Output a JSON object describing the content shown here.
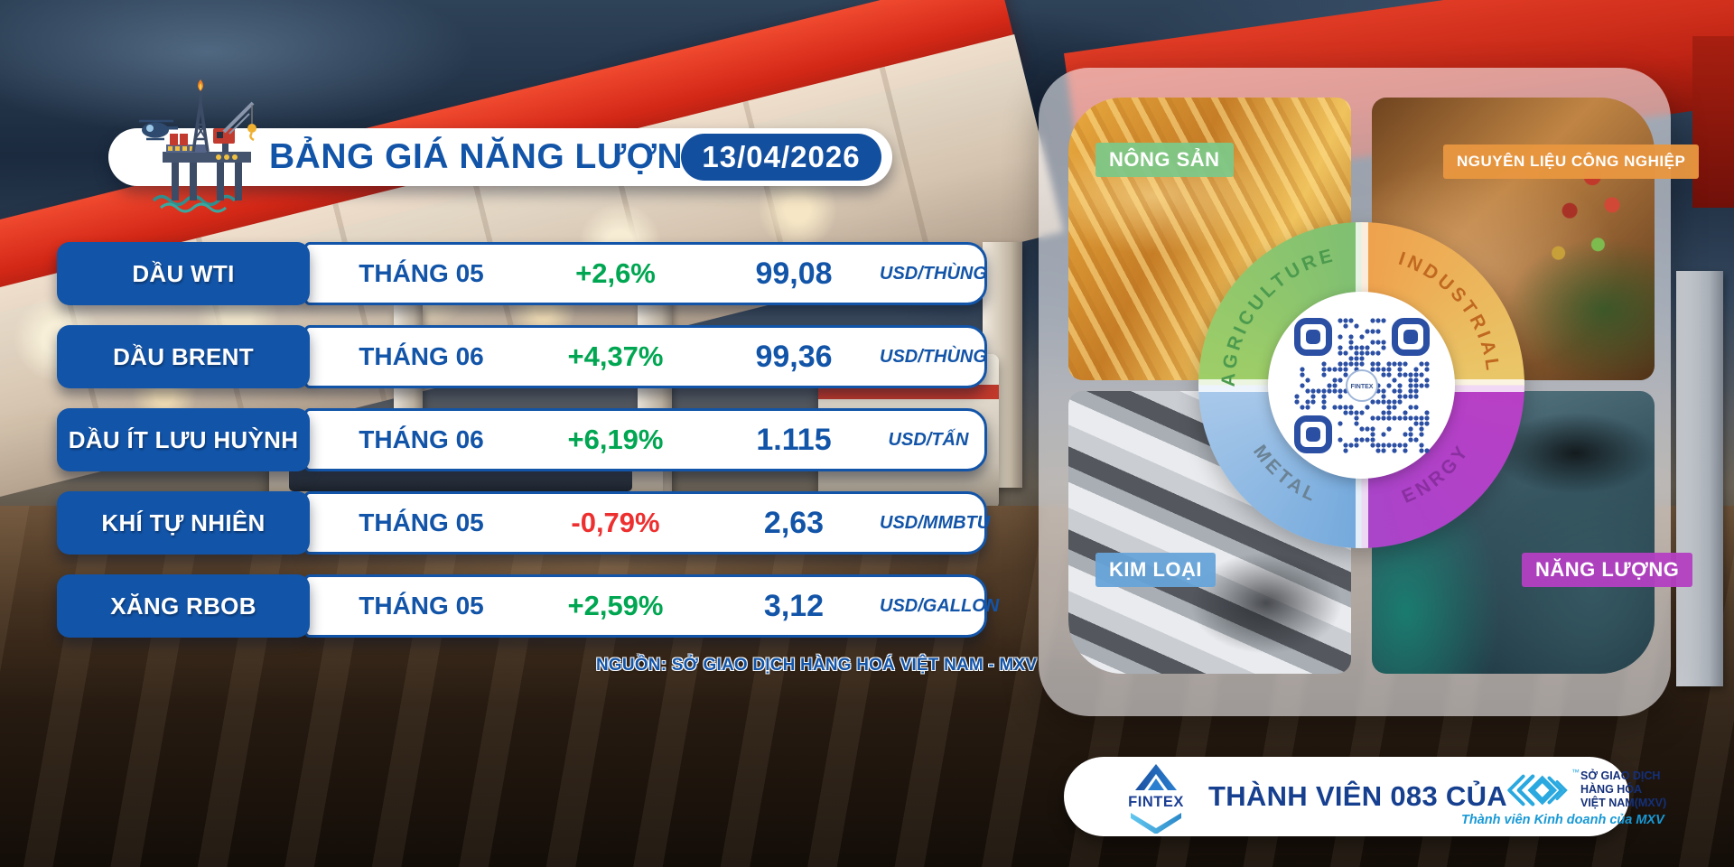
{
  "header": {
    "title": "BẢNG GIÁ NĂNG LƯỢNG",
    "date": "13/04/2026"
  },
  "price_table": {
    "columns": [
      "commodity",
      "contract_month",
      "change_percent",
      "price",
      "unit"
    ],
    "rows": [
      {
        "name": "DẦU WTI",
        "month": "THÁNG 05",
        "change": "+2,6%",
        "direction": "up",
        "price": "99,08",
        "unit": "USD/THÙNG"
      },
      {
        "name": "DẦU BRENT",
        "month": "THÁNG 06",
        "change": "+4,37%",
        "direction": "up",
        "price": "99,36",
        "unit": "USD/THÙNG"
      },
      {
        "name": "DẦU ÍT LƯU HUỲNH",
        "month": "THÁNG 06",
        "change": "+6,19%",
        "direction": "up",
        "price": "1.115",
        "unit": "USD/TẤN"
      },
      {
        "name": "KHÍ TỰ NHIÊN",
        "month": "THÁNG 05",
        "change": "-0,79%",
        "direction": "down",
        "price": "2,63",
        "unit": "USD/MMBTU"
      },
      {
        "name": "XĂNG RBOB",
        "month": "THÁNG 05",
        "change": "+2,59%",
        "direction": "up",
        "price": "3,12",
        "unit": "USD/GALLON"
      }
    ],
    "source": "NGUỒN: SỞ GIAO DỊCH HÀNG HOÁ VIỆT NAM - MXV"
  },
  "chart_data": {
    "type": "table",
    "title": "BẢNG GIÁ NĂNG LƯỢNG 13/04/2026",
    "categories": [
      "DẦU WTI",
      "DẦU BRENT",
      "DẦU ÍT LƯU HUỲNH",
      "KHÍ TỰ NHIÊN",
      "XĂNG RBOB"
    ],
    "months": [
      "THÁNG 05",
      "THÁNG 06",
      "THÁNG 06",
      "THÁNG 05",
      "THÁNG 05"
    ],
    "change_percent": [
      2.6,
      4.37,
      6.19,
      -0.79,
      2.59
    ],
    "prices": [
      99.08,
      99.36,
      1115,
      2.63,
      3.12
    ],
    "units": [
      "USD/THÙNG",
      "USD/THÙNG",
      "USD/TẤN",
      "USD/MMBTU",
      "USD/GALLON"
    ]
  },
  "commodity_panel": {
    "quadrants": [
      {
        "badge": "NÔNG SẢN",
        "arc_label": "AGRICULTURE",
        "arc_color": "#4c9a4e"
      },
      {
        "badge": "NGUYÊN LIỆU CÔNG NGHIỆP",
        "arc_label": "INDUSTRIAL",
        "arc_color": "#c06820"
      },
      {
        "badge": "KIM LOẠI",
        "arc_label": "METAL",
        "arc_color": "#6a8294"
      },
      {
        "badge": "NĂNG LƯỢNG",
        "arc_label": "ENRGY",
        "arc_color": "#8a2fa0"
      }
    ],
    "qr_center_label": "FINTEX"
  },
  "footer": {
    "fintex_logo_text": "FINTEX",
    "member_text": "THÀNH VIÊN 083 CỦA",
    "mxv_lines": [
      "SỞ GIAO DỊCH",
      "HÀNG HÓA",
      "VIỆT NAM(MXV)"
    ],
    "mxv_tagline": "Thành viên Kinh doanh của MXV",
    "tm": "™"
  },
  "icons": {
    "oil-rig-icon": "offshore oil platform with flame, crane and helicopter",
    "qr-code": "blue QR code with FINTEX badge in center",
    "fintex-logo-icon": "blue triangle arrow with light-blue swoosh",
    "mxv-logo-icon": "light-blue nested chevrons and diamond"
  },
  "colors": {
    "primary_blue": "#1254a8",
    "badge_blue": "#134f9f",
    "up_green": "#00a651",
    "down_red": "#ee2f2f",
    "badge_green": "rgba(125,199,135,.95)",
    "badge_orange": "rgba(232,150,63,.96)",
    "badge_lightblue": "rgba(103,164,217,.95)",
    "badge_magenta": "rgba(180,63,194,.95)",
    "qr_blue": "#2b4fa3",
    "canopy_red": "#d42817"
  }
}
